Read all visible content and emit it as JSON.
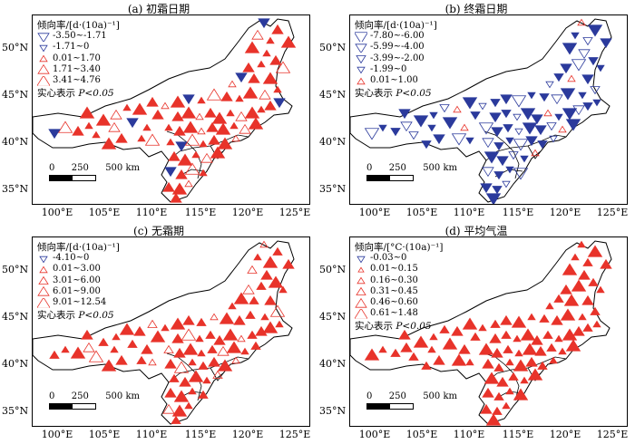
{
  "axes": {
    "lat_labels": [
      "50°N",
      "45°N",
      "40°N",
      "35°N"
    ],
    "lon_labels": [
      "100°E",
      "105°E",
      "110°E",
      "115°E",
      "120°E",
      "125°E"
    ]
  },
  "scale_bar": {
    "labels": [
      "0",
      "250",
      "500 km"
    ]
  },
  "significance_note_prefix": "实心表示 ",
  "significance_note_p": "P<0.05",
  "colors": {
    "red": "#e8332a",
    "blue": "#2b3a9c"
  },
  "panels": [
    {
      "title": "(a) 初霜日期",
      "legend_title": "倾向率/[d·(10a)⁻¹]",
      "legend": [
        {
          "label": "-3.50~-1.71",
          "shape": "down",
          "color": "blue"
        },
        {
          "label": "-1.71~0",
          "shape": "down-small",
          "color": "blue"
        },
        {
          "label": "0.01~1.70",
          "shape": "up-small",
          "color": "red"
        },
        {
          "label": "1.71~3.40",
          "shape": "up",
          "color": "red"
        },
        {
          "label": "3.41~4.76",
          "shape": "up-large",
          "color": "red"
        }
      ]
    },
    {
      "title": "(b) 终霜日期",
      "legend_title": "倾向率/[d·(10a)⁻¹]",
      "legend": [
        {
          "label": "-7.80~-6.00",
          "shape": "down-large",
          "color": "blue"
        },
        {
          "label": "-5.99~-4.00",
          "shape": "down",
          "color": "blue"
        },
        {
          "label": "-3.99~-2.00",
          "shape": "down-med",
          "color": "blue"
        },
        {
          "label": "-1.99~0",
          "shape": "down-small",
          "color": "blue"
        },
        {
          "label": "0.01~1.00",
          "shape": "up-small",
          "color": "red"
        }
      ]
    },
    {
      "title": "(c) 无霜期",
      "legend_title": "倾向率/[d·(10a)⁻¹]",
      "legend": [
        {
          "label": "-4.10~0",
          "shape": "down-small",
          "color": "blue"
        },
        {
          "label": "0.01~3.00",
          "shape": "up-small",
          "color": "red"
        },
        {
          "label": "3.01~6.00",
          "shape": "up-med",
          "color": "red"
        },
        {
          "label": "6.01~9.00",
          "shape": "up",
          "color": "red"
        },
        {
          "label": "9.01~12.54",
          "shape": "up-large",
          "color": "red"
        }
      ]
    },
    {
      "title": "(d) 平均气温",
      "legend_title": "倾向率/[°C·(10a)⁻¹]",
      "legend": [
        {
          "label": "-0.03~0",
          "shape": "down-small",
          "color": "blue"
        },
        {
          "label": "0.01~0.15",
          "shape": "up-tiny",
          "color": "red"
        },
        {
          "label": "0.16~0.30",
          "shape": "up-small",
          "color": "red"
        },
        {
          "label": "0.31~0.45",
          "shape": "up-med",
          "color": "red"
        },
        {
          "label": "0.46~0.60",
          "shape": "up",
          "color": "red"
        },
        {
          "label": "0.61~1.48",
          "shape": "up-large",
          "color": "red"
        }
      ]
    }
  ]
}
